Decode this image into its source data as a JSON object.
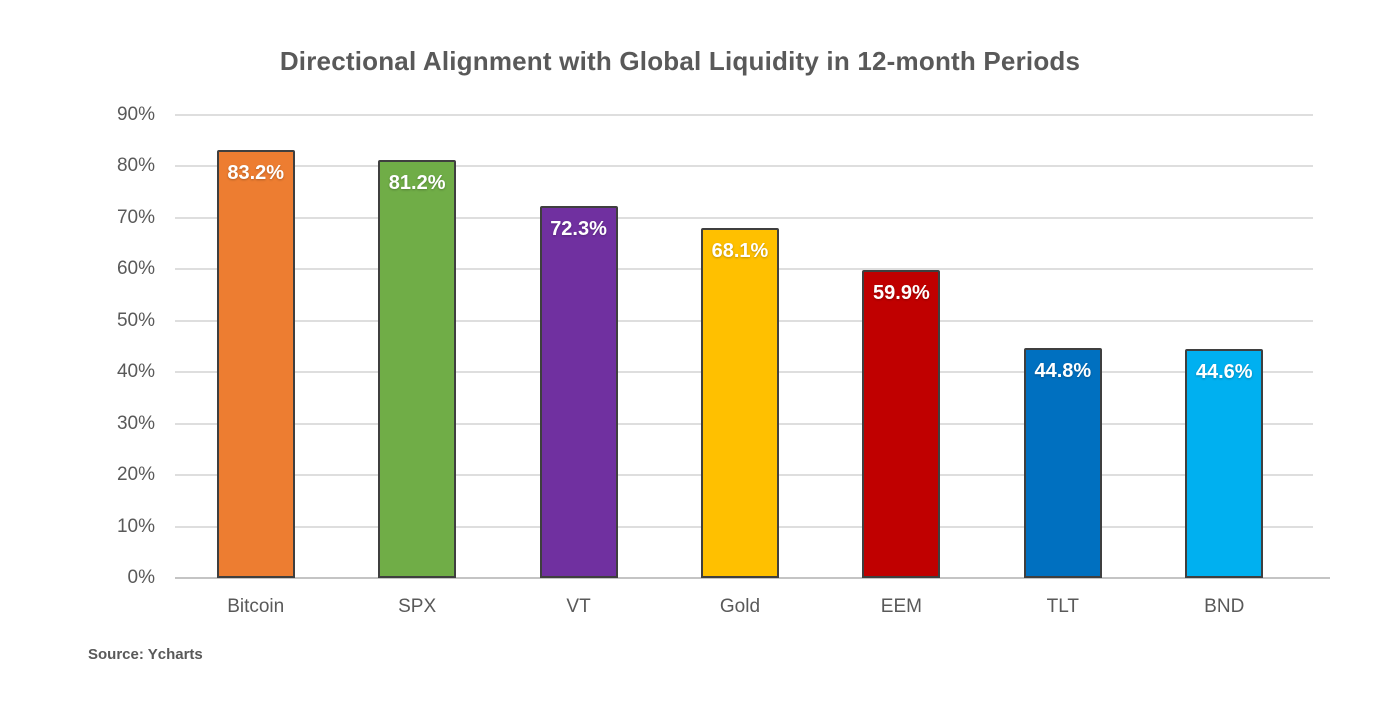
{
  "chart_data": {
    "type": "bar",
    "title": "Directional Alignment with Global Liquidity in 12-month Periods",
    "categories": [
      "Bitcoin",
      "SPX",
      "VT",
      "Gold",
      "EEM",
      "TLT",
      "BND"
    ],
    "values": [
      83.2,
      81.2,
      72.3,
      68.1,
      59.9,
      44.8,
      44.6
    ],
    "value_labels": [
      "83.2%",
      "81.2%",
      "72.3%",
      "68.1%",
      "59.9%",
      "44.8%",
      "44.6%"
    ],
    "bar_colors": [
      "#ED7D31",
      "#70AD47",
      "#7030A0",
      "#FFC000",
      "#C00000",
      "#0070C0",
      "#00B0F0"
    ],
    "bar_border_color": "#3F3F3F",
    "value_label_color": "#FFFFFF",
    "xlabel": "",
    "ylabel": "",
    "ylim": [
      0,
      90
    ],
    "ytick_step": 10,
    "yticks": [
      "0%",
      "10%",
      "20%",
      "30%",
      "40%",
      "50%",
      "60%",
      "70%",
      "80%",
      "90%"
    ],
    "grid": true,
    "gridline_color": "#DEDEDE",
    "axis_line_color": "#C4C4C4",
    "tick_label_color": "#595959",
    "title_color": "#595959",
    "legend": "none"
  },
  "source": "Source: Ycharts"
}
